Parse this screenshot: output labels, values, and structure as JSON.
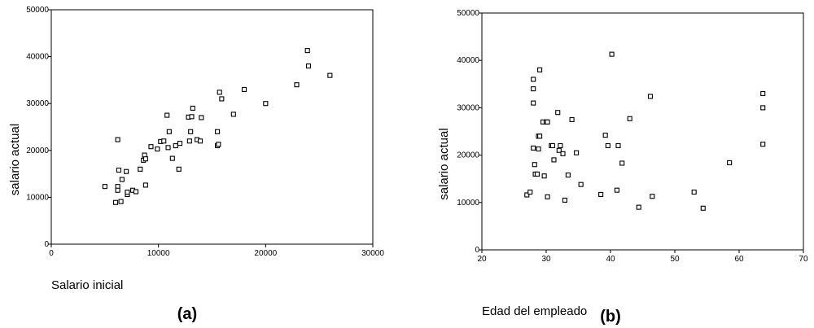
{
  "chart_data": [
    {
      "type": "scatter",
      "panel_label": "(a)",
      "xlabel": "Salario inicial",
      "ylabel": "salario actual",
      "xlim": [
        0,
        30000
      ],
      "ylim": [
        0,
        50000
      ],
      "xticks": [
        0,
        10000,
        20000,
        30000
      ],
      "yticks": [
        0,
        10000,
        20000,
        30000,
        40000,
        50000
      ],
      "grid": false,
      "points": [
        [
          5000,
          12300
        ],
        [
          6000,
          8900
        ],
        [
          6200,
          22300
        ],
        [
          6300,
          15800
        ],
        [
          6200,
          12300
        ],
        [
          6200,
          11500
        ],
        [
          6500,
          9100
        ],
        [
          6600,
          13800
        ],
        [
          7000,
          15500
        ],
        [
          7100,
          10600
        ],
        [
          7100,
          11100
        ],
        [
          7600,
          11500
        ],
        [
          7900,
          11200
        ],
        [
          8300,
          16000
        ],
        [
          8600,
          17900
        ],
        [
          8700,
          19000
        ],
        [
          8800,
          12600
        ],
        [
          8800,
          18200
        ],
        [
          9300,
          20800
        ],
        [
          9900,
          20300
        ],
        [
          10200,
          21900
        ],
        [
          10500,
          22000
        ],
        [
          10800,
          27500
        ],
        [
          10900,
          20600
        ],
        [
          11000,
          24000
        ],
        [
          11300,
          18300
        ],
        [
          11600,
          21000
        ],
        [
          11900,
          16000
        ],
        [
          12000,
          21500
        ],
        [
          12800,
          27100
        ],
        [
          12900,
          22000
        ],
        [
          13000,
          24000
        ],
        [
          13100,
          27200
        ],
        [
          13200,
          29000
        ],
        [
          13600,
          22300
        ],
        [
          13900,
          22000
        ],
        [
          14000,
          27000
        ],
        [
          15500,
          24000
        ],
        [
          15500,
          21000
        ],
        [
          15600,
          21300
        ],
        [
          15700,
          32400
        ],
        [
          15900,
          31000
        ],
        [
          17000,
          27700
        ],
        [
          18000,
          33000
        ],
        [
          20000,
          30000
        ],
        [
          22900,
          34000
        ],
        [
          23900,
          41300
        ],
        [
          24000,
          38000
        ],
        [
          26000,
          36000
        ]
      ]
    },
    {
      "type": "scatter",
      "panel_label": "(b)",
      "xlabel": "Edad del empleado",
      "ylabel": "salario actual",
      "xlim": [
        20,
        70
      ],
      "ylim": [
        0,
        50000
      ],
      "xticks": [
        20,
        30,
        40,
        50,
        60,
        70
      ],
      "yticks": [
        0,
        10000,
        20000,
        30000,
        40000,
        50000
      ],
      "grid": false,
      "points": [
        [
          27,
          11600
        ],
        [
          27.5,
          12200
        ],
        [
          28,
          36000
        ],
        [
          28,
          34000
        ],
        [
          28,
          31000
        ],
        [
          28,
          21500
        ],
        [
          28.2,
          18000
        ],
        [
          28.3,
          16000
        ],
        [
          28.6,
          16000
        ],
        [
          28.8,
          21300
        ],
        [
          28.8,
          24000
        ],
        [
          29,
          38000
        ],
        [
          29,
          24000
        ],
        [
          29.5,
          27000
        ],
        [
          29.7,
          15600
        ],
        [
          30,
          27000
        ],
        [
          30.2,
          27000
        ],
        [
          30.2,
          11200
        ],
        [
          30.8,
          22000
        ],
        [
          31,
          22000
        ],
        [
          31.2,
          19000
        ],
        [
          31.8,
          29000
        ],
        [
          32,
          21000
        ],
        [
          32.2,
          22000
        ],
        [
          32.6,
          20300
        ],
        [
          32.9,
          10500
        ],
        [
          33.4,
          15800
        ],
        [
          34,
          27500
        ],
        [
          34.7,
          20500
        ],
        [
          35.4,
          13800
        ],
        [
          38.5,
          11700
        ],
        [
          39.2,
          24200
        ],
        [
          39.6,
          22000
        ],
        [
          40.2,
          41300
        ],
        [
          41,
          12600
        ],
        [
          41.2,
          22000
        ],
        [
          41.8,
          18300
        ],
        [
          43,
          27700
        ],
        [
          44.4,
          9000
        ],
        [
          46.2,
          32400
        ],
        [
          46.5,
          11300
        ],
        [
          53,
          12200
        ],
        [
          54.4,
          8800
        ],
        [
          58.5,
          18400
        ],
        [
          63.7,
          33000
        ],
        [
          63.7,
          30000
        ],
        [
          63.7,
          22300
        ]
      ]
    }
  ]
}
